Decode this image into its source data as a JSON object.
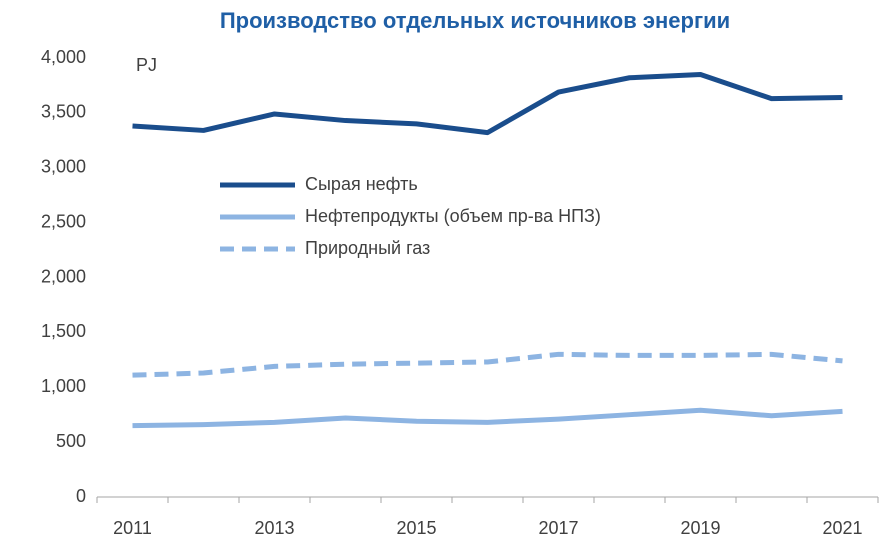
{
  "chart_data": {
    "type": "line",
    "title": "Производство отдельных источников энергии",
    "unit_label": "PJ",
    "categories": [
      "2011",
      null,
      "2013",
      null,
      "2015",
      null,
      "2017",
      null,
      "2019",
      null,
      "2021"
    ],
    "series": [
      {
        "name": "Сырая нефть",
        "color": "#1a4d8c",
        "dash": false,
        "values": [
          3380,
          3340,
          3490,
          3430,
          3400,
          3320,
          3690,
          3820,
          3850,
          3630,
          3640
        ]
      },
      {
        "name": "Нефтепродукты (объем пр-ва НПЗ)",
        "color": "#8db4e2",
        "dash": false,
        "values": [
          650,
          660,
          680,
          720,
          690,
          680,
          710,
          750,
          790,
          740,
          780
        ]
      },
      {
        "name": "Природный газ",
        "color": "#8db4e2",
        "dash": true,
        "values": [
          1110,
          1130,
          1190,
          1210,
          1220,
          1230,
          1300,
          1290,
          1290,
          1300,
          1240
        ]
      }
    ],
    "ylim": [
      0,
      4000
    ],
    "yticks": [
      0,
      500,
      {
        "value": 1000,
        "label": "1,000"
      },
      {
        "value": 1500,
        "label": "1,500"
      },
      {
        "value": 2000,
        "label": "2,000"
      },
      {
        "value": 2500,
        "label": "2,500"
      },
      {
        "value": 3000,
        "label": "3,000"
      },
      {
        "value": 3500,
        "label": "3,500"
      },
      {
        "value": 4000,
        "label": "4,000"
      }
    ],
    "grid": false,
    "legend": "center"
  }
}
